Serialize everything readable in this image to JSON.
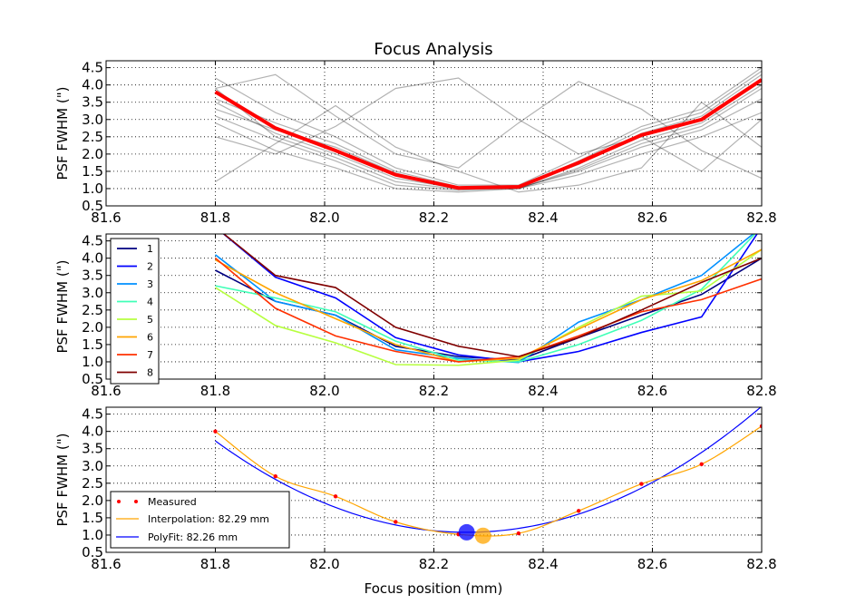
{
  "figure": {
    "title": "Focus Analysis",
    "xlabel": "Focus position (mm)"
  },
  "chart_data": [
    {
      "type": "line",
      "ylabel": "PSF FWHM (\")",
      "xlim": [
        81.6,
        82.8
      ],
      "ylim": [
        0.5,
        4.7
      ],
      "x_ticks": [
        "81.6",
        "81.8",
        "82.0",
        "82.2",
        "82.4",
        "82.6",
        "82.8"
      ],
      "y_ticks": [
        "0.5",
        "1.0",
        "1.5",
        "2.0",
        "2.5",
        "3.0",
        "3.5",
        "4.0",
        "4.5"
      ],
      "grid": true,
      "x": [
        81.8,
        81.91,
        82.02,
        82.13,
        82.245,
        82.355,
        82.465,
        82.58,
        82.69,
        82.8
      ],
      "series": [
        {
          "values": [
            3.8,
            2.75,
            2.1,
            1.4,
            1.02,
            1.05,
            1.75,
            2.55,
            3.0,
            4.15
          ],
          "color": "#ff0000",
          "role": "median"
        },
        {
          "values": [
            3.5,
            2.6,
            2.0,
            1.3,
            1.0,
            1.0,
            1.6,
            2.4,
            2.9,
            4.0
          ],
          "color": "#000000"
        },
        {
          "values": [
            3.1,
            2.4,
            1.8,
            1.1,
            0.95,
            1.02,
            1.5,
            2.2,
            2.7,
            3.6
          ],
          "color": "#000000"
        },
        {
          "values": [
            4.2,
            3.2,
            2.5,
            1.6,
            1.1,
            1.1,
            1.9,
            2.8,
            3.3,
            4.5
          ],
          "color": "#000000"
        },
        {
          "values": [
            2.9,
            2.1,
            1.6,
            1.0,
            0.9,
            1.0,
            1.4,
            2.0,
            2.5,
            3.2
          ],
          "color": "#000000"
        },
        {
          "values": [
            3.6,
            2.9,
            2.3,
            1.5,
            1.05,
            1.05,
            1.7,
            2.6,
            3.1,
            4.3
          ],
          "color": "#000000"
        },
        {
          "values": [
            3.9,
            2.5,
            1.9,
            1.2,
            0.98,
            1.0,
            1.55,
            2.3,
            2.8,
            3.9
          ],
          "color": "#000000"
        },
        {
          "values": [
            3.3,
            2.7,
            2.2,
            1.45,
            1.0,
            1.02,
            1.8,
            2.7,
            3.2,
            4.4
          ],
          "color": "#000000"
        },
        {
          "values": [
            2.5,
            2.0,
            2.8,
            3.9,
            4.2,
            3.0,
            2.0,
            2.5,
            1.5,
            3.0
          ],
          "color": "#000000"
        },
        {
          "values": [
            1.2,
            2.3,
            3.4,
            2.2,
            1.5,
            0.9,
            1.1,
            1.6,
            3.5,
            2.2
          ],
          "color": "#000000"
        },
        {
          "values": [
            3.9,
            4.3,
            3.1,
            2.0,
            1.6,
            2.9,
            4.1,
            3.3,
            2.1,
            1.3
          ],
          "color": "#000000"
        }
      ]
    },
    {
      "type": "line",
      "ylabel": "PSF FWHM (\")",
      "xlim": [
        81.6,
        82.8
      ],
      "ylim": [
        0.5,
        4.7
      ],
      "x_ticks": [
        "81.6",
        "81.8",
        "82.0",
        "82.2",
        "82.4",
        "82.6",
        "82.8"
      ],
      "y_ticks": [
        "0.5",
        "1.0",
        "1.5",
        "2.0",
        "2.5",
        "3.0",
        "3.5",
        "4.0",
        "4.5"
      ],
      "grid": true,
      "legend_position": "left",
      "x": [
        81.8,
        81.91,
        82.02,
        82.13,
        82.245,
        82.355,
        82.465,
        82.58,
        82.69,
        82.8
      ],
      "series": [
        {
          "name": "1",
          "color": "#000080",
          "values": [
            3.65,
            2.75,
            2.35,
            1.45,
            1.15,
            1.05,
            1.7,
            2.35,
            2.95,
            4.0
          ]
        },
        {
          "name": "2",
          "color": "#0000ff",
          "values": [
            4.9,
            3.45,
            2.85,
            1.7,
            1.2,
            1.0,
            1.3,
            1.85,
            2.3,
            4.9
          ]
        },
        {
          "name": "3",
          "color": "#0090ff",
          "values": [
            4.1,
            2.75,
            2.35,
            1.35,
            1.1,
            0.98,
            2.15,
            2.8,
            3.5,
            4.9
          ]
        },
        {
          "name": "4",
          "color": "#40ffb7",
          "values": [
            3.2,
            2.85,
            2.45,
            1.6,
            1.05,
            1.0,
            1.5,
            2.2,
            3.1,
            4.9
          ]
        },
        {
          "name": "5",
          "color": "#b7ff40",
          "values": [
            3.15,
            2.05,
            1.55,
            0.92,
            0.9,
            1.05,
            2.0,
            2.9,
            3.05,
            4.25
          ]
        },
        {
          "name": "6",
          "color": "#ffa500",
          "values": [
            3.95,
            3.0,
            2.25,
            1.5,
            1.0,
            1.1,
            1.95,
            2.8,
            3.35,
            4.25
          ]
        },
        {
          "name": "7",
          "color": "#ff3000",
          "values": [
            4.0,
            2.55,
            1.75,
            1.3,
            1.0,
            1.15,
            1.75,
            2.45,
            2.8,
            3.4
          ]
        },
        {
          "name": "8",
          "color": "#800000",
          "values": [
            4.9,
            3.5,
            3.15,
            2.0,
            1.45,
            1.15,
            1.7,
            2.5,
            3.3,
            4.0
          ]
        }
      ]
    },
    {
      "type": "line",
      "ylabel": "PSF FWHM (\")",
      "xlabel": "Focus position (mm)",
      "xlim": [
        81.6,
        82.8
      ],
      "ylim": [
        0.5,
        4.7
      ],
      "x_ticks": [
        "81.6",
        "81.8",
        "82.0",
        "82.2",
        "82.4",
        "82.6",
        "82.8"
      ],
      "y_ticks": [
        "0.5",
        "1.0",
        "1.5",
        "2.0",
        "2.5",
        "3.0",
        "3.5",
        "4.0",
        "4.5"
      ],
      "grid": true,
      "legend_position": "lower-left",
      "measured": {
        "name": "Measured",
        "color": "#ff0000",
        "x": [
          81.8,
          81.91,
          82.02,
          82.13,
          82.245,
          82.355,
          82.465,
          82.58,
          82.69,
          82.8
        ],
        "y": [
          4.0,
          2.7,
          2.12,
          1.38,
          1.02,
          1.05,
          1.7,
          2.48,
          3.05,
          4.15
        ]
      },
      "interpolation": {
        "name": "Interpolation: 82.29 mm",
        "color": "#ffa500",
        "best_x": 82.29,
        "best_y": 0.98
      },
      "polyfit": {
        "name": "PolyFit: 82.26 mm",
        "color": "#0000ff",
        "best_x": 82.26,
        "best_y": 1.08,
        "coefficients": {
          "a": 12.5,
          "b": 82.26,
          "c": 1.08
        }
      }
    }
  ]
}
